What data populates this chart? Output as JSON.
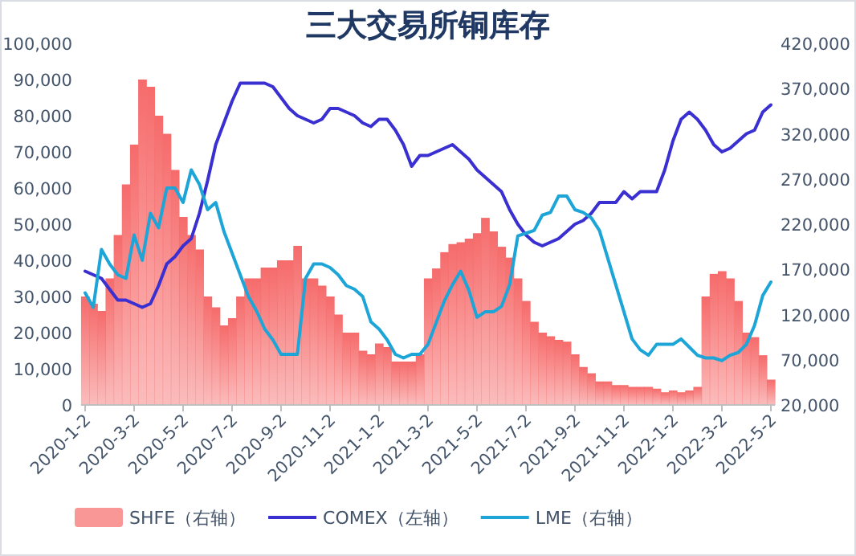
{
  "chart_data": {
    "type": "line",
    "title": "三大交易所铜库存",
    "categories": [
      "2020-1-2",
      null,
      null,
      null,
      null,
      null,
      "2020-3-2",
      null,
      null,
      null,
      null,
      null,
      "2020-5-2",
      null,
      null,
      null,
      null,
      null,
      "2020-7-2",
      null,
      null,
      null,
      null,
      null,
      "2020-9-2",
      null,
      null,
      null,
      null,
      null,
      "2020-11-2",
      null,
      null,
      null,
      null,
      null,
      "2021-1-2",
      null,
      null,
      null,
      null,
      null,
      "2021-3-2",
      null,
      null,
      null,
      null,
      null,
      "2021-5-2",
      null,
      null,
      null,
      null,
      null,
      "2021-7-2",
      null,
      null,
      null,
      null,
      null,
      "2021-9-2",
      null,
      null,
      null,
      null,
      null,
      "2021-11-2",
      null,
      null,
      null,
      null,
      null,
      "2022-1-2",
      null,
      null,
      null,
      null,
      null,
      "2022-3-2",
      null,
      null,
      null,
      null,
      null,
      "2022-5-2"
    ],
    "series": [
      {
        "name": "SHFE（右轴）",
        "type": "bar",
        "axis": "y2",
        "color": "#f66b6b",
        "values": [
          140000,
          132000,
          124000,
          160000,
          208000,
          264000,
          308000,
          380000,
          372000,
          340000,
          320000,
          280000,
          228000,
          208000,
          192000,
          140000,
          128000,
          108000,
          116000,
          140000,
          160000,
          160000,
          172000,
          172000,
          180000,
          180000,
          196000,
          160000,
          160000,
          152000,
          140000,
          120000,
          100000,
          100000,
          80000,
          76000,
          88000,
          84000,
          68000,
          68000,
          68000,
          76000,
          160000,
          171000,
          189000,
          198000,
          200000,
          204000,
          210000,
          227000,
          212000,
          195000,
          183000,
          160000,
          135000,
          112000,
          100000,
          96000,
          92000,
          90000,
          76000,
          62000,
          55000,
          46000,
          46000,
          42000,
          42000,
          40000,
          40000,
          40000,
          38000,
          34000,
          36000,
          34000,
          36000,
          40000,
          140000,
          165000,
          168000,
          160000,
          135000,
          100000,
          95000,
          75000,
          48000
        ]
      },
      {
        "name": "COMEX（左轴）",
        "color": "#3a2fd0",
        "values": [
          37000,
          36000,
          35000,
          32000,
          29000,
          29000,
          28000,
          27000,
          28000,
          33000,
          39000,
          41000,
          44000,
          46000,
          53000,
          62000,
          72000,
          78000,
          84000,
          89000,
          89000,
          89000,
          89000,
          88000,
          85000,
          82000,
          80000,
          79000,
          78000,
          79000,
          82000,
          82000,
          81000,
          80000,
          78000,
          77000,
          79000,
          79000,
          76000,
          72000,
          66000,
          69000,
          69000,
          70000,
          71000,
          72000,
          70000,
          68000,
          65000,
          63000,
          61000,
          59000,
          54000,
          50000,
          47000,
          45000,
          44000,
          45000,
          46000,
          48000,
          50000,
          51000,
          53000,
          56000,
          56000,
          56000,
          59000,
          57000,
          59000,
          59000,
          59000,
          65000,
          73000,
          79000,
          81000,
          79000,
          76000,
          72000,
          70000,
          71000,
          73000,
          75000,
          76000,
          81000,
          83000
        ]
      },
      {
        "name": "LME（右轴）",
        "type": "line",
        "axis": "y2",
        "color": "#1ea5d8",
        "values": [
          144000,
          128000,
          192000,
          176000,
          164000,
          160000,
          208000,
          180000,
          232000,
          216000,
          260000,
          260000,
          244000,
          280000,
          264000,
          236000,
          244000,
          212000,
          188000,
          164000,
          140000,
          124000,
          104000,
          92000,
          76000,
          76000,
          76000,
          160000,
          176000,
          176000,
          172000,
          164000,
          152000,
          148000,
          140000,
          112000,
          104000,
          92000,
          76000,
          72000,
          76000,
          76000,
          87000,
          111000,
          135000,
          153000,
          168000,
          147000,
          117000,
          123000,
          123000,
          129000,
          153000,
          207000,
          210000,
          213000,
          230000,
          233000,
          251000,
          251000,
          236000,
          233000,
          227000,
          213000,
          183000,
          153000,
          123000,
          93000,
          81000,
          75000,
          87000,
          87000,
          87000,
          93000,
          84000,
          75000,
          72000,
          72000,
          69000,
          75000,
          78000,
          87000,
          108000,
          141000,
          156000
        ]
      }
    ],
    "ylim": [
      0,
      100000
    ],
    "yticks": [
      {
        "value": 0,
        "label": "0"
      },
      {
        "value": 10000,
        "label": "10,000"
      },
      {
        "value": 20000,
        "label": "20,000"
      },
      {
        "value": 30000,
        "label": "30,000"
      },
      {
        "value": 40000,
        "label": "40,000"
      },
      {
        "value": 50000,
        "label": "50,000"
      },
      {
        "value": 60000,
        "label": "60,000"
      },
      {
        "value": 70000,
        "label": "70,000"
      },
      {
        "value": 80000,
        "label": "80,000"
      },
      {
        "value": 90000,
        "label": "90,000"
      },
      {
        "value": 100000,
        "label": "100,000"
      }
    ],
    "y2lim": [
      20000,
      420000
    ],
    "y2ticks": [
      {
        "value": 20000,
        "label": "20,000"
      },
      {
        "value": 70000,
        "label": "70,000"
      },
      {
        "value": 120000,
        "label": "120,000"
      },
      {
        "value": 170000,
        "label": "170,000"
      },
      {
        "value": 220000,
        "label": "220,000"
      },
      {
        "value": 270000,
        "label": "270,000"
      },
      {
        "value": 320000,
        "label": "320,000"
      },
      {
        "value": 370000,
        "label": "370,000"
      },
      {
        "value": 420000,
        "label": "420,000"
      }
    ],
    "legend": "bottom"
  }
}
